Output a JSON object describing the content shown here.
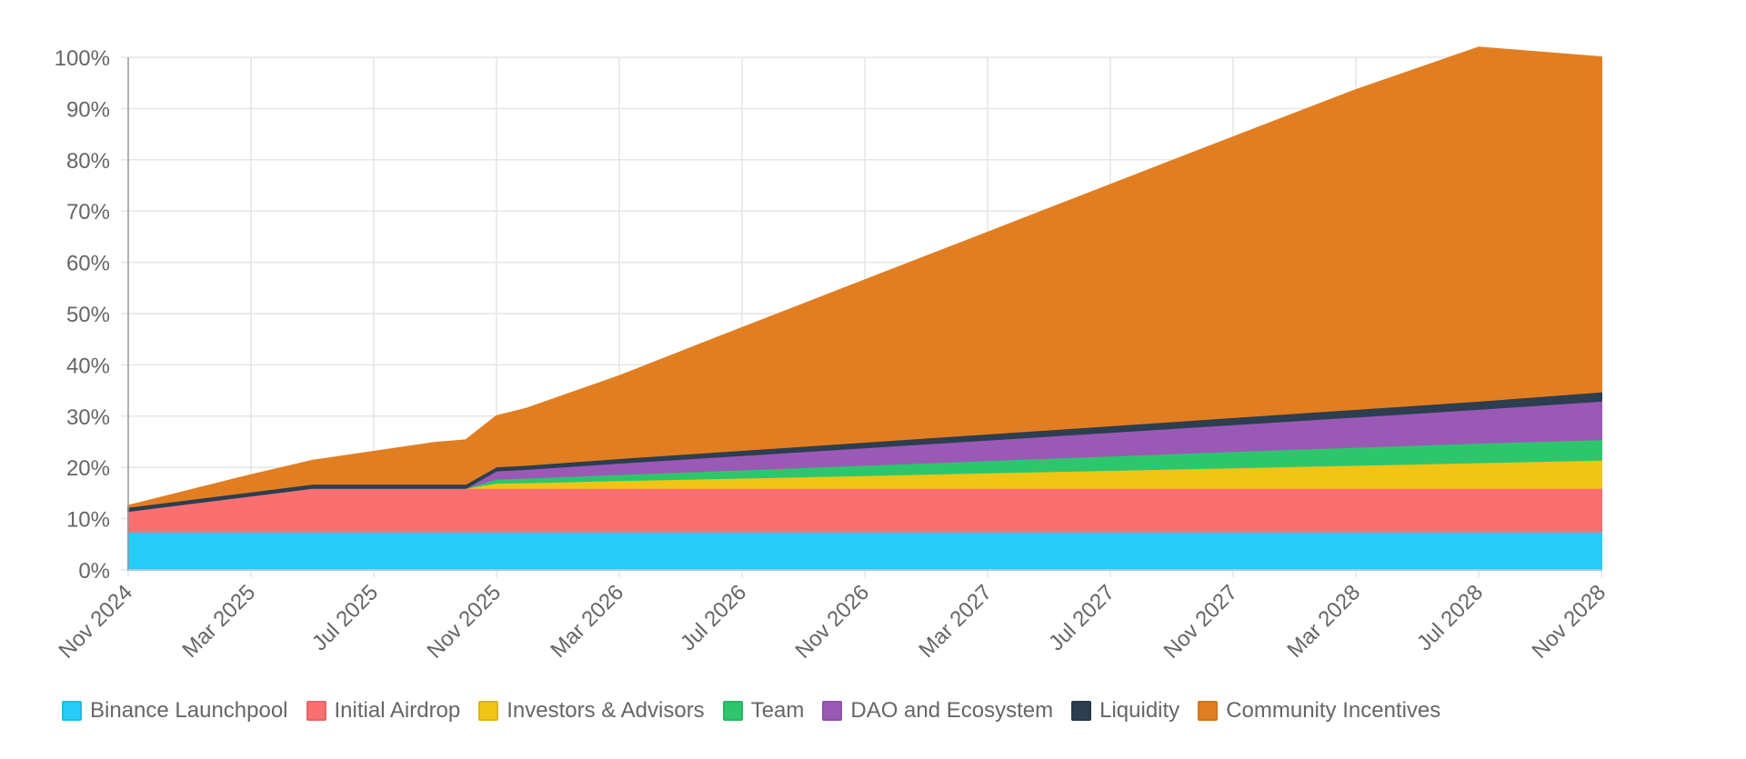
{
  "chart_data": {
    "type": "area",
    "stacked": true,
    "title": "",
    "xlabel": "",
    "ylabel": "",
    "ylim": [
      0,
      100
    ],
    "y_ticks": [
      "0%",
      "10%",
      "20%",
      "30%",
      "40%",
      "50%",
      "60%",
      "70%",
      "80%",
      "90%",
      "100%"
    ],
    "x_ticks": [
      "Nov 2024",
      "Mar 2025",
      "Jul 2025",
      "Nov 2025",
      "Mar 2026",
      "Jul 2026",
      "Nov 2026",
      "Mar 2027",
      "Jul 2027",
      "Nov 2027",
      "Mar 2028",
      "Jul 2028",
      "Nov 2028"
    ],
    "grid": true,
    "legend_position": "bottom",
    "x": [
      "Nov 2024",
      "Mar 2025",
      "May 2025",
      "Sep 2025",
      "Oct 2025",
      "Nov 2025",
      "Dec 2025",
      "Mar 2026",
      "Jul 2026",
      "Nov 2026",
      "Mar 2027",
      "Jul 2027",
      "Nov 2027",
      "Mar 2028",
      "Jul 2028",
      "Nov 2028"
    ],
    "series": [
      {
        "name": "Binance Launchpool",
        "color": "#26cbf8",
        "values": [
          7.5,
          7.5,
          7.5,
          7.5,
          7.5,
          7.5,
          7.5,
          7.5,
          7.5,
          7.5,
          7.5,
          7.5,
          7.5,
          7.5,
          7.5,
          7.5
        ]
      },
      {
        "name": "Initial Airdrop",
        "color": "#fa7071",
        "values": [
          4.0,
          7.0,
          8.5,
          8.5,
          8.5,
          8.5,
          8.5,
          8.5,
          8.5,
          8.5,
          8.5,
          8.5,
          8.5,
          8.5,
          8.5,
          8.5
        ]
      },
      {
        "name": "Investors & Advisors",
        "color": "#f0c516",
        "values": [
          0,
          0,
          0,
          0,
          0,
          1.0,
          1.1,
          1.5,
          2.0,
          2.5,
          3.0,
          3.5,
          4.0,
          4.5,
          5.0,
          5.5
        ]
      },
      {
        "name": "Team",
        "color": "#2ec66c",
        "values": [
          0,
          0,
          0,
          0,
          0,
          0.8,
          0.9,
          1.2,
          1.6,
          2.0,
          2.4,
          2.8,
          3.2,
          3.5,
          3.8,
          4.0
        ]
      },
      {
        "name": "DAO and Ecosystem",
        "color": "#9b59b6",
        "values": [
          0,
          0,
          0,
          0,
          0,
          1.6,
          1.7,
          2.2,
          2.8,
          3.4,
          4.0,
          4.6,
          5.2,
          5.9,
          6.6,
          7.5
        ]
      },
      {
        "name": "Liquidity",
        "color": "#2c3e50",
        "values": [
          0.8,
          0.8,
          0.8,
          0.8,
          0.8,
          0.8,
          0.8,
          0.9,
          1.0,
          1.1,
          1.2,
          1.3,
          1.4,
          1.5,
          1.6,
          1.8
        ]
      },
      {
        "name": "Community Incentives",
        "color": "#e27e22",
        "values": [
          0.2,
          3.2,
          4.5,
          8.0,
          8.5,
          9.8,
          11.0,
          16.0,
          23.8,
          31.5,
          39.2,
          46.9,
          54.6,
          62.2,
          68.9,
          65.2
        ]
      }
    ]
  }
}
